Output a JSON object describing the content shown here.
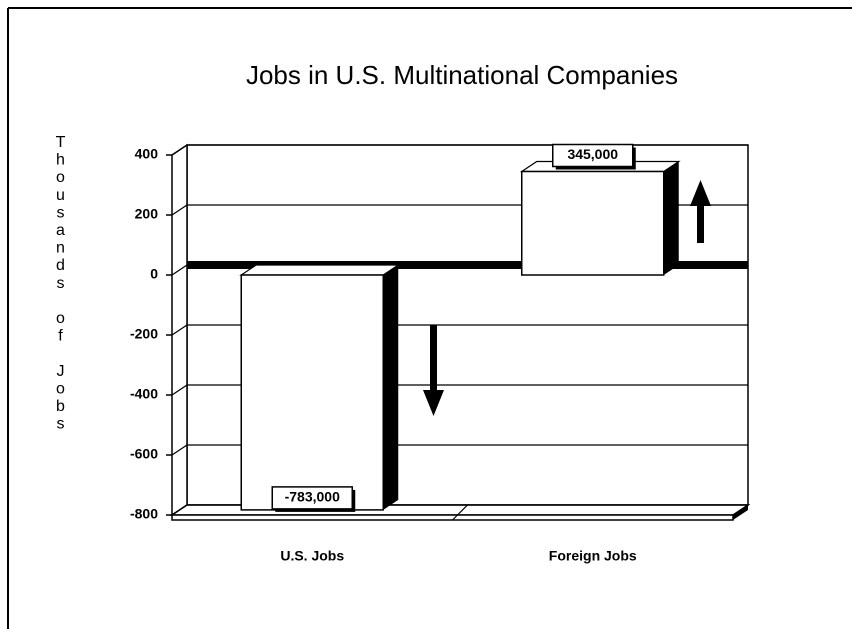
{
  "chart_data": {
    "type": "bar3d",
    "title": "Jobs in U.S. Multinational Companies",
    "y_label": "Thousands of Jobs",
    "categories": [
      "U.S. Jobs",
      "Foreign Jobs"
    ],
    "values": [
      -783,
      345
    ],
    "value_labels": [
      "-783,000",
      "345,000"
    ],
    "color": "#ffffff",
    "ylim": [
      -800,
      400
    ],
    "yticks": [
      -800,
      -600,
      -400,
      -200,
      0,
      200,
      400
    ],
    "grid": true
  }
}
